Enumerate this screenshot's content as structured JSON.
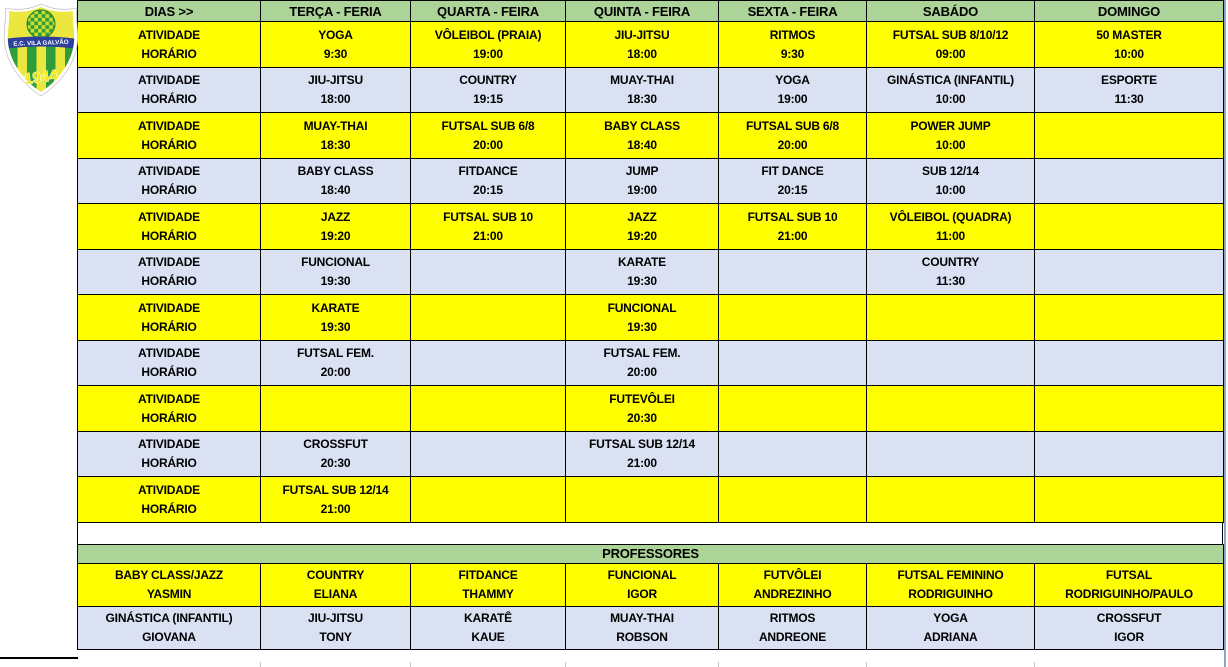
{
  "logo": {
    "club": "E.C. VILA GALVÃO",
    "year": "1944"
  },
  "colors": {
    "header_green": "#ACD398",
    "yellow": "#FFFF00",
    "light_blue": "#D9E1F2",
    "grid": "#000000",
    "banner_blue": "#2B3F9B",
    "shield_green": "#2F9E3A",
    "shield_yellow": "#ECE73E"
  },
  "schedule": {
    "header": [
      "DIAS >>",
      "TERÇA - FERIA",
      "QUARTA - FEIRA",
      "QUINTA - FEIRA",
      "SEXTA - FEIRA",
      "SABÁDO",
      "DOMINGO"
    ],
    "label_activity": "ATIVIDADE",
    "label_time": "HORÁRIO",
    "rows": [
      {
        "color": "yellow",
        "cells": [
          [
            "YOGA",
            "9:30"
          ],
          [
            "VÔLEIBOL (PRAIA)",
            "19:00"
          ],
          [
            "JIU-JITSU",
            "18:00"
          ],
          [
            "RITMOS",
            "9:30"
          ],
          [
            "FUTSAL SUB 8/10/12",
            "09:00"
          ],
          [
            "50 MASTER",
            "10:00"
          ]
        ]
      },
      {
        "color": "blue",
        "cells": [
          [
            "JIU-JITSU",
            "18:00"
          ],
          [
            "COUNTRY",
            "19:15"
          ],
          [
            "MUAY-THAI",
            "18:30"
          ],
          [
            "YOGA",
            "19:00"
          ],
          [
            "GINÁSTICA (INFANTIL)",
            "10:00"
          ],
          [
            "ESPORTE",
            "11:30"
          ]
        ]
      },
      {
        "color": "yellow",
        "cells": [
          [
            "MUAY-THAI",
            "18:30"
          ],
          [
            "FUTSAL SUB 6/8",
            "20:00"
          ],
          [
            "BABY CLASS",
            "18:40"
          ],
          [
            "FUTSAL SUB 6/8",
            "20:00"
          ],
          [
            "POWER JUMP",
            "10:00"
          ],
          [
            "",
            ""
          ]
        ]
      },
      {
        "color": "blue",
        "cells": [
          [
            "BABY CLASS",
            "18:40"
          ],
          [
            "FITDANCE",
            "20:15"
          ],
          [
            "JUMP",
            "19:00"
          ],
          [
            "FIT DANCE",
            "20:15"
          ],
          [
            "SUB 12/14",
            "10:00"
          ],
          [
            "",
            ""
          ]
        ]
      },
      {
        "color": "yellow",
        "cells": [
          [
            "JAZZ",
            "19:20"
          ],
          [
            "FUTSAL SUB 10",
            "21:00"
          ],
          [
            "JAZZ",
            "19:20"
          ],
          [
            "FUTSAL SUB 10",
            "21:00"
          ],
          [
            "VÔLEIBOL (QUADRA)",
            "11:00"
          ],
          [
            "",
            ""
          ]
        ]
      },
      {
        "color": "blue",
        "cells": [
          [
            "FUNCIONAL",
            "19:30"
          ],
          [
            "",
            ""
          ],
          [
            "KARATE",
            "19:30"
          ],
          [
            "",
            ""
          ],
          [
            "COUNTRY",
            "11:30"
          ],
          [
            "",
            ""
          ]
        ]
      },
      {
        "color": "yellow",
        "cells": [
          [
            "KARATE",
            "19:30"
          ],
          [
            "",
            ""
          ],
          [
            "FUNCIONAL",
            "19:30"
          ],
          [
            "",
            ""
          ],
          [
            "",
            ""
          ],
          [
            "",
            ""
          ]
        ]
      },
      {
        "color": "blue",
        "cells": [
          [
            "FUTSAL FEM.",
            "20:00"
          ],
          [
            "",
            ""
          ],
          [
            "FUTSAL FEM.",
            "20:00"
          ],
          [
            "",
            ""
          ],
          [
            "",
            ""
          ],
          [
            "",
            ""
          ]
        ]
      },
      {
        "color": "yellow",
        "cells": [
          [
            "",
            ""
          ],
          [
            "",
            ""
          ],
          [
            "FUTEVÔLEI",
            "20:30"
          ],
          [
            "",
            ""
          ],
          [
            "",
            ""
          ],
          [
            "",
            ""
          ]
        ]
      },
      {
        "color": "blue",
        "cells": [
          [
            "CROSSFUT",
            "20:30"
          ],
          [
            "",
            ""
          ],
          [
            "FUTSAL SUB 12/14",
            "21:00"
          ],
          [
            "",
            ""
          ],
          [
            "",
            ""
          ],
          [
            "",
            ""
          ]
        ]
      },
      {
        "color": "yellow",
        "cells": [
          [
            "FUTSAL SUB 12/14",
            "21:00"
          ],
          [
            "",
            ""
          ],
          [
            "",
            ""
          ],
          [
            "",
            ""
          ],
          [
            "",
            ""
          ],
          [
            "",
            ""
          ]
        ]
      }
    ]
  },
  "professores": {
    "title": "PROFESSORES",
    "rows": [
      {
        "color": "yellow",
        "cells": [
          [
            "BABY CLASS/JAZZ",
            "YASMIN"
          ],
          [
            "COUNTRY",
            "ELIANA"
          ],
          [
            "FITDANCE",
            "THAMMY"
          ],
          [
            "FUNCIONAL",
            "IGOR"
          ],
          [
            "FUTVÔLEI",
            "ANDREZINHO"
          ],
          [
            "FUTSAL FEMININO",
            "RODRIGUINHO"
          ],
          [
            "FUTSAL",
            "RODRIGUINHO/PAULO"
          ]
        ]
      },
      {
        "color": "blue",
        "cells": [
          [
            "GINÁSTICA (INFANTIL)",
            "GIOVANA"
          ],
          [
            "JIU-JITSU",
            "TONY"
          ],
          [
            "KARATÊ",
            "KAUE"
          ],
          [
            "MUAY-THAI",
            "ROBSON"
          ],
          [
            "RITMOS",
            "ANDREONE"
          ],
          [
            "YOGA",
            "ADRIANA"
          ],
          [
            "CROSSFUT",
            "IGOR"
          ]
        ]
      }
    ]
  }
}
